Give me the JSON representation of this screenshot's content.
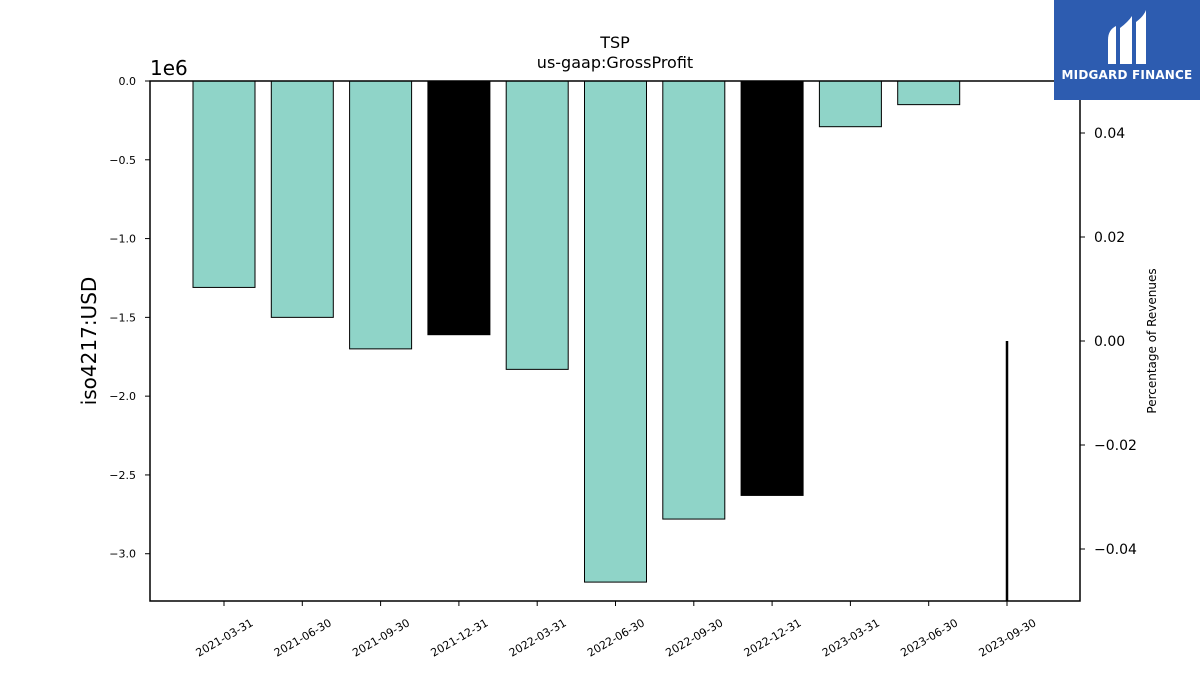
{
  "chart_data": {
    "type": "bar",
    "title": "TSP",
    "subtitle": "us-gaap:GrossProfit",
    "ylabel": "iso4217:USD",
    "y_offset_label": "1e6",
    "y2label": "Percentage of Revenues",
    "categories": [
      "2021-03-31",
      "2021-06-30",
      "2021-09-30",
      "2021-12-31",
      "2022-03-31",
      "2022-06-30",
      "2022-09-30",
      "2022-12-31",
      "2023-03-31",
      "2023-06-30",
      "2023-09-30"
    ],
    "values": [
      -1.31,
      -1.5,
      -1.7,
      -1.61,
      -1.83,
      -3.18,
      -2.78,
      -2.63,
      -0.29,
      -0.15,
      null
    ],
    "bar_colors": [
      "#8fd4c8",
      "#8fd4c8",
      "#8fd4c8",
      "#000000",
      "#8fd4c8",
      "#8fd4c8",
      "#8fd4c8",
      "#000000",
      "#8fd4c8",
      "#8fd4c8",
      "#8fd4c8"
    ],
    "ylim": [
      -3.3,
      0
    ],
    "yticks": [
      0.0,
      -0.5,
      -1.0,
      -1.5,
      -2.0,
      -2.5,
      -3.0
    ],
    "ytick_labels": [
      "0.0",
      "−0.5",
      "−1.0",
      "−1.5",
      "−2.0",
      "−2.5",
      "−3.0"
    ],
    "y2lim": [
      -0.05,
      0.05
    ],
    "y2ticks": [
      0.04,
      0.02,
      0.0,
      -0.02,
      -0.04
    ],
    "y2tick_labels": [
      "0.04",
      "0.02",
      "0.00",
      "−0.02",
      "−0.04"
    ],
    "line_series": {
      "category": "2023-09-30",
      "from": 0.0,
      "to": -0.05,
      "color": "#000000"
    },
    "grid": false,
    "legend": "none"
  },
  "logo": {
    "text": "MIDGARD FINANCE",
    "color": "#2d5cb0"
  }
}
